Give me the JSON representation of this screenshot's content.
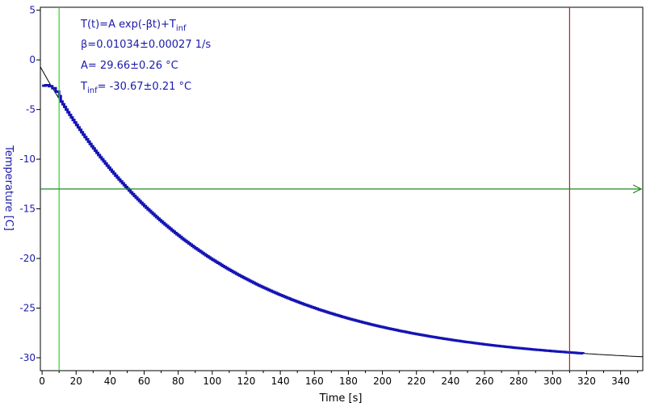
{
  "chart_data": {
    "type": "scatter",
    "xlabel": "Time [s]",
    "ylabel": "Temperature [C]",
    "xlim": [
      -1,
      353
    ],
    "ylim": [
      -31.3,
      5.3
    ],
    "x_ticks": [
      0,
      20,
      40,
      60,
      80,
      100,
      120,
      140,
      160,
      180,
      200,
      220,
      240,
      260,
      280,
      300,
      320,
      340
    ],
    "y_ticks": [
      5,
      0,
      -5,
      -10,
      -15,
      -20,
      -25,
      -30
    ],
    "grid": false,
    "annotation": {
      "formula_main": "T(t)=A exp(-βt)+T",
      "formula_sub": "inf",
      "beta": "β=0.01034±0.00027 1/s",
      "a_value": "A= 29.66±0.26 °C",
      "tinf_main": "T",
      "tinf_sub": "inf",
      "tinf_value": "= -30.67±0.21 °C"
    },
    "fit": {
      "A": 29.66,
      "beta": 0.01034,
      "T_inf": -30.67,
      "x_range": [
        -1,
        353
      ]
    },
    "measurement": {
      "x_range": [
        0,
        318
      ],
      "initial_points": [
        [
          0,
          -2.6
        ],
        [
          2,
          -2.55
        ],
        [
          4,
          -2.65
        ],
        [
          6,
          -2.85
        ],
        [
          8,
          -3.2
        ],
        [
          10,
          -3.65
        ]
      ]
    },
    "cursors": {
      "left_x": 10,
      "right_x": 310,
      "horizontal_y": -13
    },
    "colors": {
      "data": "#1414b4",
      "fit": "#000000",
      "axis_text": "#1a1aaa",
      "left_cursor": "#33cc33",
      "right_cursor": "#aa2222",
      "horizontal_cursor": "#228822"
    }
  }
}
